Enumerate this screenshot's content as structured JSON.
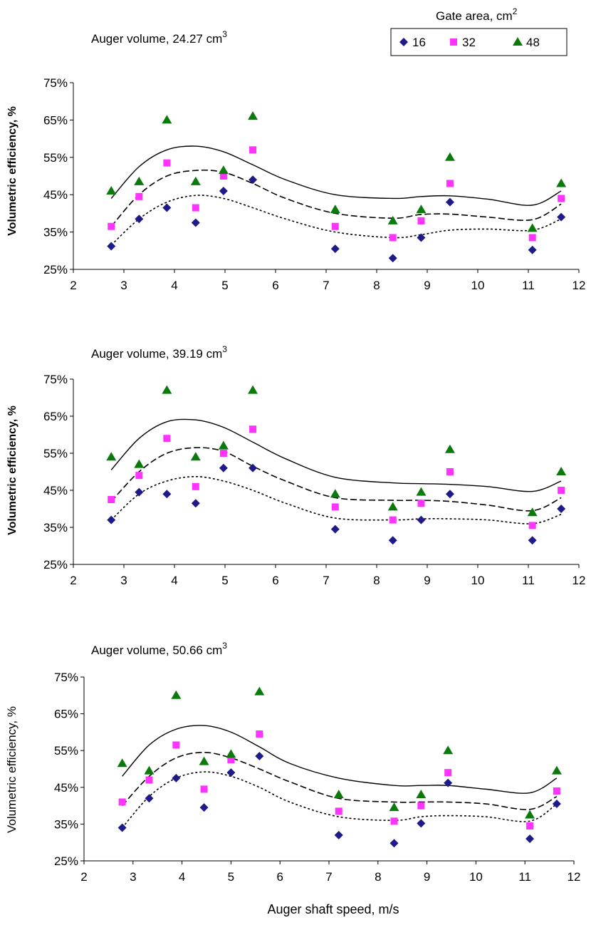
{
  "legend": {
    "title": "Gate area, cm",
    "title_sup": "2",
    "entries": [
      {
        "label": "16",
        "marker": "diamond",
        "color": "#1f1a8a"
      },
      {
        "label": "32",
        "marker": "square",
        "color": "#ff33ff"
      },
      {
        "label": "48",
        "marker": "triangle",
        "color": "#0a7a0a"
      }
    ]
  },
  "chart_data": [
    {
      "type": "scatter",
      "title": "Auger volume, 24.27 cm",
      "title_sup": "3",
      "xlabel": "",
      "ylabel": "Volumetric efficiency, %",
      "ylabel_bold": true,
      "xlim": [
        2,
        12
      ],
      "ylim": [
        25,
        75
      ],
      "x_ticks": [
        "2",
        "3",
        "4",
        "5",
        "6",
        "7",
        "8",
        "9",
        "10",
        "11",
        "12"
      ],
      "y_ticks": [
        "25%",
        "35%",
        "45%",
        "55%",
        "65%",
        "75%"
      ],
      "x": [
        2.75,
        3.3,
        3.85,
        4.42,
        4.97,
        5.55,
        7.18,
        8.32,
        8.88,
        9.45,
        11.08,
        11.65
      ],
      "series": [
        {
          "name": "16",
          "values": [
            31.2,
            38.5,
            41.5,
            37.5,
            46.0,
            49.0,
            30.5,
            28.0,
            33.5,
            43.0,
            30.2,
            39.0
          ]
        },
        {
          "name": "32",
          "values": [
            36.5,
            44.5,
            53.5,
            41.5,
            50.0,
            57.0,
            36.5,
            33.5,
            38.0,
            48.0,
            33.5,
            44.0
          ]
        },
        {
          "name": "48",
          "values": [
            46.0,
            48.5,
            65.0,
            48.5,
            51.5,
            66.0,
            41.0,
            38.0,
            41.0,
            55.0,
            36.0,
            48.0
          ]
        }
      ],
      "trendlines": [
        {
          "style": "dotted",
          "x": [
            2.75,
            3.3,
            3.85,
            4.42,
            4.97,
            5.55,
            6.2,
            7.18,
            8.32,
            8.88,
            9.45,
            10.2,
            11.08,
            11.65
          ],
          "y": [
            31.5,
            38.5,
            43.0,
            44.8,
            44.0,
            41.5,
            38.5,
            35.0,
            33.5,
            34.3,
            35.5,
            35.8,
            35.5,
            38.5
          ]
        },
        {
          "style": "dashed",
          "x": [
            2.75,
            3.3,
            3.85,
            4.42,
            4.97,
            5.55,
            6.2,
            7.18,
            8.32,
            8.88,
            9.45,
            10.2,
            11.08,
            11.65
          ],
          "y": [
            36.5,
            45.0,
            50.0,
            51.5,
            51.0,
            48.0,
            44.0,
            40.0,
            38.7,
            39.7,
            39.8,
            39.0,
            38.3,
            42.5
          ]
        },
        {
          "style": "solid",
          "x": [
            2.75,
            3.3,
            3.85,
            4.42,
            4.97,
            5.55,
            6.2,
            7.18,
            8.32,
            8.88,
            9.45,
            10.2,
            11.08,
            11.65
          ],
          "y": [
            44.0,
            52.5,
            57.0,
            58.0,
            56.5,
            53.0,
            49.0,
            45.0,
            44.0,
            44.5,
            44.7,
            43.8,
            42.2,
            46.0
          ]
        }
      ]
    },
    {
      "type": "scatter",
      "title": "Auger volume, 39.19 cm",
      "title_sup": "3",
      "xlabel": "",
      "ylabel": "Volumetric efficiency, %",
      "ylabel_bold": true,
      "xlim": [
        2,
        12
      ],
      "ylim": [
        25,
        75
      ],
      "x_ticks": [
        "2",
        "3",
        "4",
        "5",
        "6",
        "7",
        "8",
        "9",
        "10",
        "11",
        "12"
      ],
      "y_ticks": [
        "25%",
        "35%",
        "45%",
        "55%",
        "65%",
        "75%"
      ],
      "x": [
        2.75,
        3.3,
        3.85,
        4.42,
        4.97,
        5.55,
        7.18,
        8.32,
        8.88,
        9.45,
        11.08,
        11.65
      ],
      "series": [
        {
          "name": "16",
          "values": [
            37.0,
            44.5,
            44.0,
            41.5,
            51.0,
            51.0,
            34.5,
            31.5,
            37.0,
            44.0,
            31.5,
            40.0
          ]
        },
        {
          "name": "32",
          "values": [
            42.5,
            49.0,
            59.0,
            46.0,
            55.0,
            61.5,
            40.5,
            37.0,
            41.5,
            50.0,
            35.5,
            45.0
          ]
        },
        {
          "name": "48",
          "values": [
            54.0,
            52.0,
            72.0,
            54.0,
            57.0,
            72.0,
            44.0,
            40.5,
            44.5,
            56.0,
            39.0,
            50.0
          ]
        }
      ],
      "trendlines": [
        {
          "style": "dotted",
          "x": [
            2.75,
            3.3,
            3.85,
            4.42,
            4.97,
            5.55,
            6.2,
            7.18,
            8.32,
            8.88,
            9.45,
            10.2,
            11.08,
            11.65
          ],
          "y": [
            37.0,
            44.0,
            47.5,
            48.7,
            47.5,
            45.0,
            41.5,
            37.5,
            37.0,
            37.3,
            37.3,
            37.0,
            36.0,
            38.5
          ]
        },
        {
          "style": "dashed",
          "x": [
            2.75,
            3.3,
            3.85,
            4.42,
            4.97,
            5.55,
            6.2,
            7.18,
            8.32,
            8.88,
            9.45,
            10.2,
            11.08,
            11.65
          ],
          "y": [
            42.0,
            50.0,
            55.0,
            56.5,
            55.5,
            51.5,
            47.5,
            43.0,
            42.3,
            42.3,
            42.0,
            41.0,
            39.5,
            43.0
          ]
        },
        {
          "style": "solid",
          "x": [
            2.75,
            3.3,
            3.85,
            4.42,
            4.97,
            5.55,
            6.2,
            7.18,
            8.32,
            8.88,
            9.45,
            10.2,
            11.08,
            11.65
          ],
          "y": [
            50.5,
            59.0,
            63.5,
            64.0,
            62.0,
            58.0,
            53.5,
            48.5,
            47.0,
            46.8,
            46.6,
            46.0,
            44.7,
            47.5
          ]
        }
      ]
    },
    {
      "type": "scatter",
      "title": "Auger volume, 50.66 cm",
      "title_sup": "3",
      "xlabel": "Auger shaft speed, m/s",
      "ylabel": "Volumetric efficiency, %",
      "ylabel_bold": false,
      "xlim": [
        2,
        12
      ],
      "ylim": [
        25,
        75
      ],
      "x_ticks": [
        "2",
        "3",
        "4",
        "5",
        "6",
        "7",
        "8",
        "9",
        "10",
        "11",
        "12"
      ],
      "y_ticks": [
        "25%",
        "35%",
        "45%",
        "55%",
        "65%",
        "75%"
      ],
      "x": [
        2.78,
        3.33,
        3.88,
        4.45,
        5.0,
        5.58,
        7.2,
        8.33,
        8.88,
        9.43,
        11.1,
        11.65
      ],
      "series": [
        {
          "name": "16",
          "values": [
            34.0,
            42.0,
            47.5,
            39.5,
            49.0,
            53.5,
            32.0,
            29.8,
            35.2,
            46.2,
            31.0,
            40.5
          ]
        },
        {
          "name": "32",
          "values": [
            41.0,
            47.0,
            56.5,
            44.5,
            52.5,
            59.5,
            38.5,
            35.8,
            40.0,
            49.0,
            34.5,
            44.0
          ]
        },
        {
          "name": "48",
          "values": [
            51.5,
            49.5,
            70.0,
            52.0,
            54.0,
            71.0,
            43.0,
            39.5,
            43.0,
            55.0,
            37.5,
            49.5
          ]
        }
      ],
      "trendlines": [
        {
          "style": "dotted",
          "x": [
            2.78,
            3.33,
            3.88,
            4.45,
            5.0,
            5.58,
            6.2,
            7.2,
            8.33,
            8.88,
            9.43,
            10.2,
            11.1,
            11.65
          ],
          "y": [
            34.0,
            42.5,
            47.5,
            49.2,
            48.0,
            45.0,
            41.0,
            37.0,
            36.0,
            37.0,
            37.3,
            37.0,
            35.8,
            40.5
          ]
        },
        {
          "style": "dashed",
          "x": [
            2.78,
            3.33,
            3.88,
            4.45,
            5.0,
            5.58,
            6.2,
            7.2,
            8.33,
            8.88,
            9.43,
            10.2,
            11.1,
            11.65
          ],
          "y": [
            40.0,
            48.0,
            53.0,
            54.5,
            53.0,
            50.0,
            46.5,
            42.0,
            41.0,
            41.0,
            41.0,
            40.5,
            39.0,
            42.5
          ]
        },
        {
          "style": "solid",
          "x": [
            2.78,
            3.33,
            3.88,
            4.45,
            5.0,
            5.58,
            6.2,
            7.2,
            8.33,
            8.88,
            9.43,
            10.2,
            11.1,
            11.65
          ],
          "y": [
            48.0,
            56.5,
            60.8,
            61.8,
            60.0,
            56.0,
            51.5,
            47.5,
            45.5,
            45.5,
            45.5,
            44.5,
            43.5,
            47.5
          ]
        }
      ]
    }
  ]
}
